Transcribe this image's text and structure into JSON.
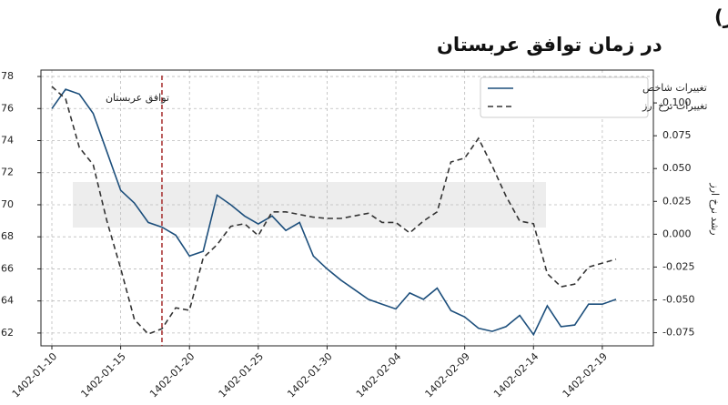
{
  "chart_data": {
    "type": "line",
    "title": "مقایسه شاخص اجتماعی باتغییرات نرخ ارز (دلار)",
    "subtitle": "در زمان توافق عربستان",
    "y2_label": "رشد نرخ ارز",
    "categories": [
      "1402-01-10",
      "1402-01-11",
      "1402-01-12",
      "1402-01-13",
      "1402-01-14",
      "1402-01-15",
      "1402-01-16",
      "1402-01-17",
      "1402-01-18",
      "1402-01-19",
      "1402-01-20",
      "1402-01-21",
      "1402-01-22",
      "1402-01-23",
      "1402-01-24",
      "1402-01-25",
      "1402-01-26",
      "1402-01-27",
      "1402-01-28",
      "1402-01-29",
      "1402-01-30",
      "1402-01-31",
      "1402-02-01",
      "1402-02-02",
      "1402-02-03",
      "1402-02-04",
      "1402-02-05",
      "1402-02-06",
      "1402-02-07",
      "1402-02-08",
      "1402-02-09",
      "1402-02-10",
      "1402-02-11",
      "1402-02-12",
      "1402-02-13",
      "1402-02-14",
      "1402-02-15",
      "1402-02-16",
      "1402-02-17",
      "1402-02-18",
      "1402-02-19",
      "1402-02-20"
    ],
    "xticks": [
      "1402-01-10",
      "1402-01-15",
      "1402-01-20",
      "1402-01-25",
      "1402-01-30",
      "1402-02-04",
      "1402-02-09",
      "1402-02-14",
      "1402-02-19"
    ],
    "series": [
      {
        "name": "تغییرات شاخص",
        "color": "#1d4f7c",
        "dash": false,
        "axis": "y",
        "values": [
          76.0,
          77.2,
          76.9,
          75.7,
          73.3,
          70.9,
          70.1,
          68.9,
          68.6,
          68.1,
          66.8,
          67.1,
          70.6,
          70.0,
          69.3,
          68.8,
          69.3,
          68.4,
          68.9,
          66.8,
          66.0,
          65.3,
          64.7,
          64.1,
          63.8,
          63.5,
          64.5,
          64.1,
          64.8,
          63.4,
          63.0,
          62.3,
          62.1,
          62.4,
          63.1,
          61.9,
          63.7,
          62.4,
          62.5,
          63.8,
          63.8,
          64.1
        ]
      },
      {
        "name": "تغییرات نرخ ارز",
        "color": "#333333",
        "dash": true,
        "axis": "y2",
        "values": [
          0.1125,
          0.103,
          0.066,
          0.053,
          0.01,
          -0.026,
          -0.065,
          -0.076,
          -0.072,
          -0.056,
          -0.058,
          -0.018,
          -0.008,
          0.006,
          0.008,
          -0.001,
          0.017,
          0.017,
          0.015,
          0.013,
          0.012,
          0.012,
          0.014,
          0.016,
          0.009,
          0.009,
          0.001,
          0.01,
          0.017,
          0.055,
          0.058,
          0.073,
          0.052,
          0.029,
          0.01,
          0.008,
          -0.03,
          -0.04,
          -0.038,
          -0.025,
          -0.022,
          -0.019
        ]
      }
    ],
    "ylim": [
      61.2,
      78.4
    ],
    "yticks": [
      62,
      64,
      66,
      68,
      70,
      72,
      74,
      76,
      78
    ],
    "y2lim": [
      -0.085,
      0.125
    ],
    "y2ticks": [
      -0.075,
      {
        "value": -0.05,
        "label": "-0.050"
      },
      -0.025,
      {
        "value": 0,
        "label": "0.000"
      },
      0.025,
      {
        "value": 0.05,
        "label": "0.050"
      },
      0.075,
      {
        "value": 0.1,
        "label": "0.100"
      }
    ],
    "annotation": {
      "text": "توافق عربستان",
      "x": "1402-01-18",
      "color": "#a52a2a"
    },
    "grid": true,
    "legend": "upper right"
  }
}
